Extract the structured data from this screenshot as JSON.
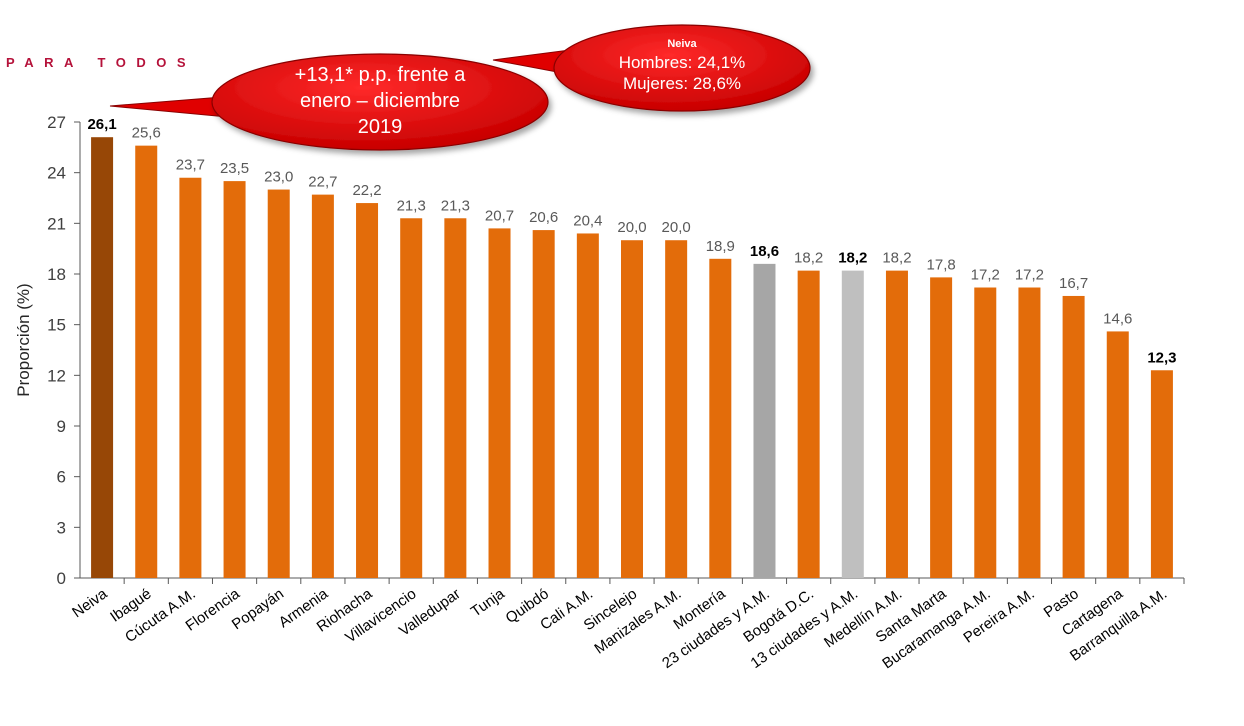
{
  "header": {
    "text": "PARA TODOS"
  },
  "annotations": {
    "left_bubble": [
      "+13,1* p.p. frente a",
      "enero – diciembre",
      "2019"
    ],
    "right_bubble": {
      "title": "Neiva",
      "lines": [
        "Hombres: 24,1%",
        "Mujeres: 28,6%"
      ]
    }
  },
  "colors": {
    "bar_default": "#e36c0a",
    "bar_highlight": "#974706",
    "bar_gray_23": "#a6a6a6",
    "bar_gray_13": "#bfbfbf",
    "bubble_red": "#e00000",
    "header": "#b5123a"
  },
  "chart_data": {
    "type": "bar",
    "ylabel": "Proporción (%)",
    "ylim": [
      0,
      27
    ],
    "yticks": [
      0,
      3,
      6,
      9,
      12,
      15,
      18,
      21,
      24,
      27
    ],
    "grid": false,
    "categories": [
      "Neiva",
      "Ibagué",
      "Cúcuta A.M.",
      "Florencia",
      "Popayán",
      "Armenia",
      "Riohacha",
      "Villavicencio",
      "Valledupar",
      "Tunja",
      "Quibdó",
      "Cali A.M.",
      "Sincelejo",
      "Manizales A.M.",
      "Montería",
      "23 ciudades y A.M.",
      "Bogotá  D.C.",
      "13 ciudades y A.M.",
      "Medellín A.M.",
      "Santa Marta",
      "Bucaramanga A.M.",
      "Pereira A.M.",
      "Pasto",
      "Cartagena",
      "Barranquilla A.M."
    ],
    "values": [
      26.1,
      25.6,
      23.7,
      23.5,
      23.0,
      22.7,
      22.2,
      21.3,
      21.3,
      20.7,
      20.6,
      20.4,
      20.0,
      20.0,
      18.9,
      18.6,
      18.2,
      18.2,
      18.2,
      17.8,
      17.2,
      17.2,
      16.7,
      14.6,
      12.3
    ],
    "value_labels": [
      "26,1",
      "25,6",
      "23,7",
      "23,5",
      "23,0",
      "22,7",
      "22,2",
      "21,3",
      "21,3",
      "20,7",
      "20,6",
      "20,4",
      "20,0",
      "20,0",
      "18,9",
      "18,6",
      "18,2",
      "18,2",
      "18,2",
      "17,8",
      "17,2",
      "17,2",
      "16,7",
      "14,6",
      "12,3"
    ],
    "bold_labels": [
      "Neiva",
      "23 ciudades y A.M.",
      "13 ciudades y A.M.",
      "Barranquilla A.M."
    ]
  }
}
